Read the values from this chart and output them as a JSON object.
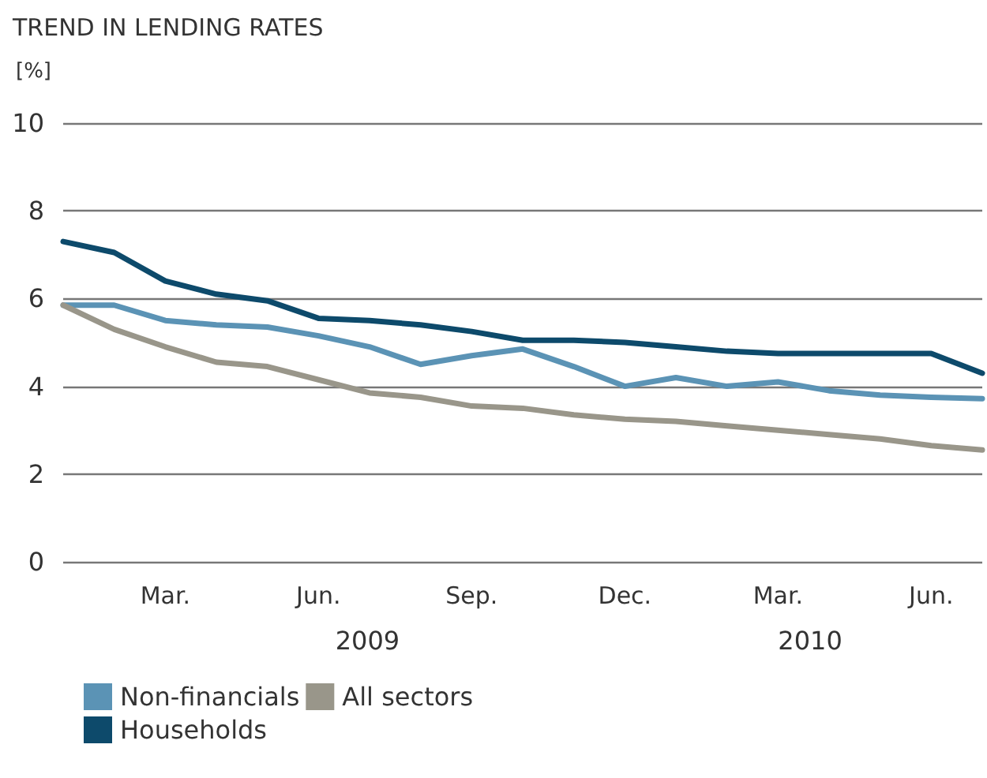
{
  "chart_data": {
    "type": "line",
    "title": "TREND IN LENDING RATES",
    "ylabel": "[%]",
    "categories": [
      null,
      null,
      "Mar.",
      null,
      null,
      "Jun.",
      null,
      null,
      "Sep.",
      null,
      null,
      "Dec.",
      null,
      null,
      "Mar.",
      null,
      null,
      "Jun.",
      null
    ],
    "annotations": [
      "2009",
      "2010"
    ],
    "series": [
      {
        "name": "Non-financials",
        "color": "#5b93b5",
        "values": [
          5.85,
          5.85,
          5.5,
          5.4,
          5.35,
          5.15,
          4.9,
          4.5,
          4.7,
          4.85,
          4.45,
          4.0,
          4.2,
          4.0,
          4.1,
          3.9,
          3.8,
          3.75,
          3.72
        ]
      },
      {
        "name": "Households",
        "color": "#0d4a6b",
        "values": [
          7.3,
          7.05,
          6.4,
          6.1,
          5.95,
          5.55,
          5.5,
          5.4,
          5.25,
          5.05,
          5.05,
          5.0,
          4.9,
          4.8,
          4.75,
          4.75,
          4.75,
          4.75,
          4.3
        ]
      },
      {
        "name": "All sectors",
        "color": "#99968a",
        "values": [
          5.85,
          5.3,
          4.9,
          4.55,
          4.45,
          4.15,
          3.85,
          3.75,
          3.55,
          3.5,
          3.35,
          3.25,
          3.2,
          3.1,
          3.0,
          2.9,
          2.8,
          2.65,
          2.55
        ]
      }
    ],
    "ylim": [
      0,
      10
    ],
    "yticks": [
      0,
      2,
      4,
      6,
      8,
      10
    ],
    "grid": "y",
    "legend": "bottom left",
    "marker": "none",
    "line_style": "solid"
  }
}
